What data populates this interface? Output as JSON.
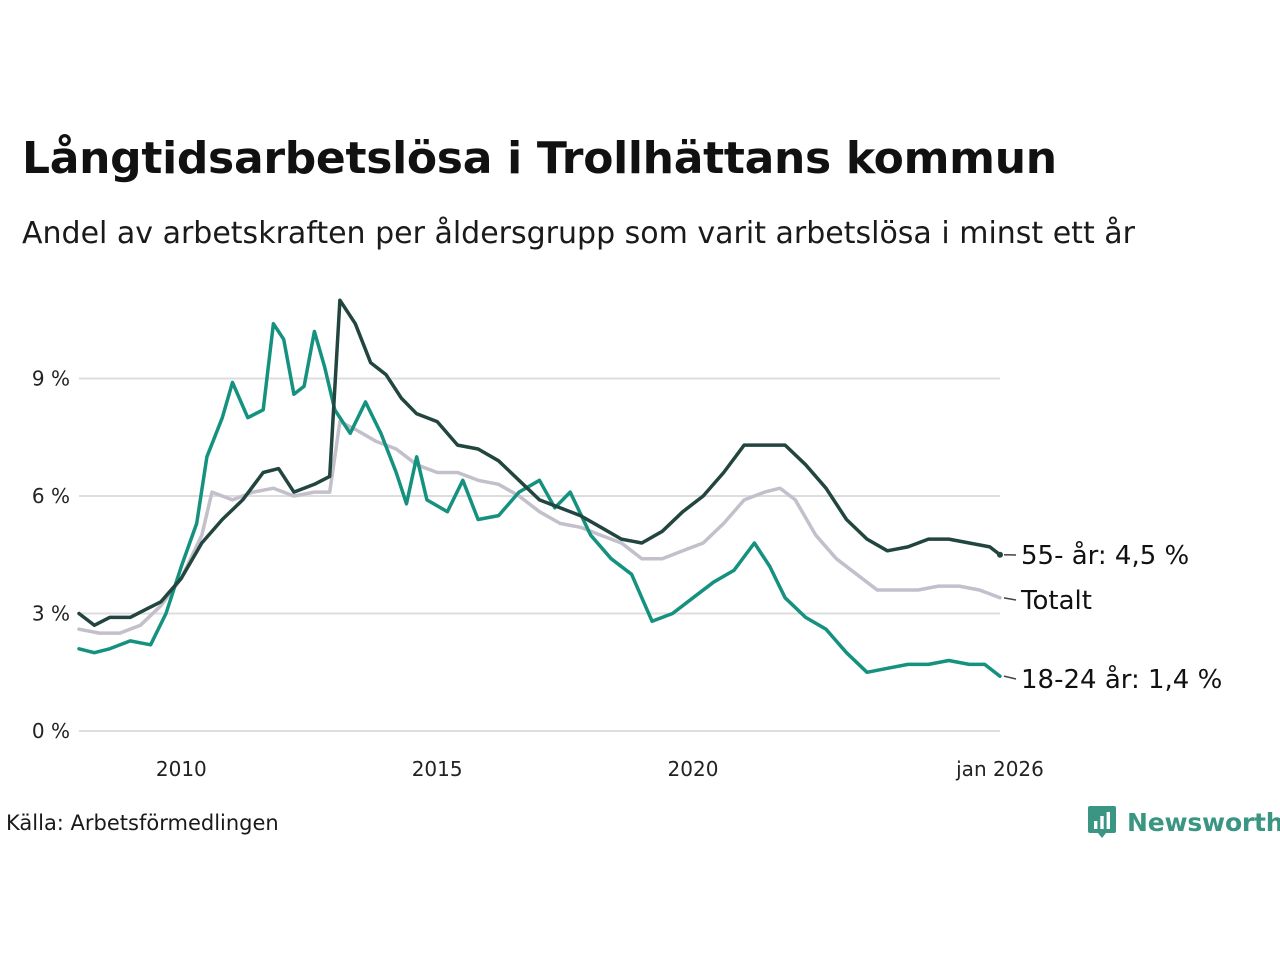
{
  "header": {
    "title": "Långtidsarbetslösa i Trollhättans kommun",
    "subtitle": "Andel av arbetskraften per åldersgrupp som varit arbetslösa i minst ett år"
  },
  "footer": {
    "source": "Källa: Arbetsförmedlingen",
    "brand": "Newsworthy"
  },
  "colors": {
    "age55": "#22463f",
    "total": "#c3bfcb",
    "age1824": "#15927f",
    "grid": "#dddddd",
    "brand": "#3a9582"
  },
  "chart_data": {
    "type": "line",
    "title": "Långtidsarbetslösa i Trollhättans kommun",
    "subtitle": "Andel av arbetskraften per åldersgrupp som varit arbetslösa i minst ett år",
    "xlabel": "",
    "ylabel": "",
    "xlim": [
      2008.0,
      2026.0
    ],
    "ylim": [
      0,
      11
    ],
    "grid": true,
    "x_ticks": [
      2010,
      2015,
      2020,
      2026
    ],
    "x_tick_labels": [
      "2010",
      "2015",
      "2020",
      "jan 2026"
    ],
    "y_ticks": [
      0,
      3,
      6,
      9
    ],
    "y_tick_labels": [
      "0 %",
      "3 %",
      "6 %",
      "9 %"
    ],
    "series": [
      {
        "name": "55- år",
        "label": "55- år: 4,5 %",
        "color": "#22463f",
        "points": [
          [
            2008.0,
            3.0
          ],
          [
            2008.3,
            2.7
          ],
          [
            2008.6,
            2.9
          ],
          [
            2009.0,
            2.9
          ],
          [
            2009.3,
            3.1
          ],
          [
            2009.6,
            3.3
          ],
          [
            2010.0,
            3.9
          ],
          [
            2010.4,
            4.8
          ],
          [
            2010.8,
            5.4
          ],
          [
            2011.2,
            5.9
          ],
          [
            2011.6,
            6.6
          ],
          [
            2011.9,
            6.7
          ],
          [
            2012.2,
            6.1
          ],
          [
            2012.6,
            6.3
          ],
          [
            2012.9,
            6.5
          ],
          [
            2013.1,
            11.0
          ],
          [
            2013.4,
            10.4
          ],
          [
            2013.7,
            9.4
          ],
          [
            2014.0,
            9.1
          ],
          [
            2014.3,
            8.5
          ],
          [
            2014.6,
            8.1
          ],
          [
            2015.0,
            7.9
          ],
          [
            2015.4,
            7.3
          ],
          [
            2015.8,
            7.2
          ],
          [
            2016.2,
            6.9
          ],
          [
            2016.6,
            6.4
          ],
          [
            2017.0,
            5.9
          ],
          [
            2017.4,
            5.7
          ],
          [
            2017.8,
            5.5
          ],
          [
            2018.2,
            5.2
          ],
          [
            2018.6,
            4.9
          ],
          [
            2019.0,
            4.8
          ],
          [
            2019.4,
            5.1
          ],
          [
            2019.8,
            5.6
          ],
          [
            2020.2,
            6.0
          ],
          [
            2020.6,
            6.6
          ],
          [
            2021.0,
            7.3
          ],
          [
            2021.4,
            7.3
          ],
          [
            2021.8,
            7.3
          ],
          [
            2022.2,
            6.8
          ],
          [
            2022.6,
            6.2
          ],
          [
            2023.0,
            5.4
          ],
          [
            2023.4,
            4.9
          ],
          [
            2023.8,
            4.6
          ],
          [
            2024.2,
            4.7
          ],
          [
            2024.6,
            4.9
          ],
          [
            2025.0,
            4.9
          ],
          [
            2025.4,
            4.8
          ],
          [
            2025.8,
            4.7
          ],
          [
            2026.0,
            4.5
          ]
        ]
      },
      {
        "name": "Totalt",
        "label": "Totalt",
        "color": "#c3bfcb",
        "points": [
          [
            2008.0,
            2.6
          ],
          [
            2008.4,
            2.5
          ],
          [
            2008.8,
            2.5
          ],
          [
            2009.2,
            2.7
          ],
          [
            2009.6,
            3.2
          ],
          [
            2010.0,
            3.9
          ],
          [
            2010.4,
            5.0
          ],
          [
            2010.6,
            6.1
          ],
          [
            2011.0,
            5.9
          ],
          [
            2011.4,
            6.1
          ],
          [
            2011.8,
            6.2
          ],
          [
            2012.2,
            6.0
          ],
          [
            2012.6,
            6.1
          ],
          [
            2012.9,
            6.1
          ],
          [
            2013.1,
            7.9
          ],
          [
            2013.4,
            7.7
          ],
          [
            2013.8,
            7.4
          ],
          [
            2014.2,
            7.2
          ],
          [
            2014.6,
            6.8
          ],
          [
            2015.0,
            6.6
          ],
          [
            2015.4,
            6.6
          ],
          [
            2015.8,
            6.4
          ],
          [
            2016.2,
            6.3
          ],
          [
            2016.6,
            6.0
          ],
          [
            2017.0,
            5.6
          ],
          [
            2017.4,
            5.3
          ],
          [
            2017.8,
            5.2
          ],
          [
            2018.2,
            5.0
          ],
          [
            2018.6,
            4.8
          ],
          [
            2019.0,
            4.4
          ],
          [
            2019.4,
            4.4
          ],
          [
            2019.8,
            4.6
          ],
          [
            2020.2,
            4.8
          ],
          [
            2020.6,
            5.3
          ],
          [
            2021.0,
            5.9
          ],
          [
            2021.4,
            6.1
          ],
          [
            2021.7,
            6.2
          ],
          [
            2022.0,
            5.9
          ],
          [
            2022.4,
            5.0
          ],
          [
            2022.8,
            4.4
          ],
          [
            2023.2,
            4.0
          ],
          [
            2023.6,
            3.6
          ],
          [
            2024.0,
            3.6
          ],
          [
            2024.4,
            3.6
          ],
          [
            2024.8,
            3.7
          ],
          [
            2025.2,
            3.7
          ],
          [
            2025.6,
            3.6
          ],
          [
            2026.0,
            3.4
          ]
        ]
      },
      {
        "name": "18-24 år",
        "label": "18-24 år: 1,4 %",
        "color": "#15927f",
        "points": [
          [
            2008.0,
            2.1
          ],
          [
            2008.3,
            2.0
          ],
          [
            2008.6,
            2.1
          ],
          [
            2009.0,
            2.3
          ],
          [
            2009.4,
            2.2
          ],
          [
            2009.7,
            3.0
          ],
          [
            2010.0,
            4.2
          ],
          [
            2010.3,
            5.3
          ],
          [
            2010.5,
            7.0
          ],
          [
            2010.8,
            8.0
          ],
          [
            2011.0,
            8.9
          ],
          [
            2011.3,
            8.0
          ],
          [
            2011.6,
            8.2
          ],
          [
            2011.8,
            10.4
          ],
          [
            2012.0,
            10.0
          ],
          [
            2012.2,
            8.6
          ],
          [
            2012.4,
            8.8
          ],
          [
            2012.6,
            10.2
          ],
          [
            2012.8,
            9.3
          ],
          [
            2013.0,
            8.2
          ],
          [
            2013.3,
            7.6
          ],
          [
            2013.6,
            8.4
          ],
          [
            2013.9,
            7.6
          ],
          [
            2014.2,
            6.6
          ],
          [
            2014.4,
            5.8
          ],
          [
            2014.6,
            7.0
          ],
          [
            2014.8,
            5.9
          ],
          [
            2015.2,
            5.6
          ],
          [
            2015.5,
            6.4
          ],
          [
            2015.8,
            5.4
          ],
          [
            2016.2,
            5.5
          ],
          [
            2016.6,
            6.1
          ],
          [
            2017.0,
            6.4
          ],
          [
            2017.3,
            5.7
          ],
          [
            2017.6,
            6.1
          ],
          [
            2018.0,
            5.0
          ],
          [
            2018.4,
            4.4
          ],
          [
            2018.8,
            4.0
          ],
          [
            2019.2,
            2.8
          ],
          [
            2019.6,
            3.0
          ],
          [
            2020.0,
            3.4
          ],
          [
            2020.4,
            3.8
          ],
          [
            2020.8,
            4.1
          ],
          [
            2021.2,
            4.8
          ],
          [
            2021.5,
            4.2
          ],
          [
            2021.8,
            3.4
          ],
          [
            2022.2,
            2.9
          ],
          [
            2022.6,
            2.6
          ],
          [
            2023.0,
            2.0
          ],
          [
            2023.4,
            1.5
          ],
          [
            2023.8,
            1.6
          ],
          [
            2024.2,
            1.7
          ],
          [
            2024.6,
            1.7
          ],
          [
            2025.0,
            1.8
          ],
          [
            2025.4,
            1.7
          ],
          [
            2025.7,
            1.7
          ],
          [
            2026.0,
            1.4
          ]
        ]
      }
    ]
  }
}
